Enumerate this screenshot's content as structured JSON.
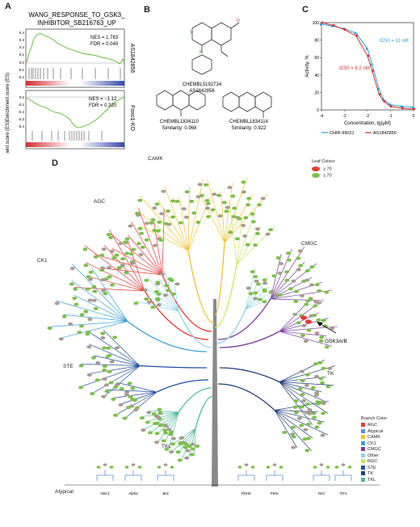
{
  "panels": {
    "a": "A",
    "b": "B",
    "c": "C",
    "d": "D"
  },
  "panelA": {
    "title1": "WANG_RESPONSE_TO_GSK3_",
    "title2": "INHIBITOR_SB216763_UP",
    "ylabel": "Enrichment score (ES)",
    "top": {
      "nes": "NES = 1.783",
      "fdr": "FDR = 0.049",
      "side": "AS1842856",
      "ticks": [
        "0.4",
        "0.3",
        "0.2",
        "0.1",
        "0.0",
        "-0.1",
        "-0.2"
      ]
    },
    "bottom": {
      "nes": "NES = −1.12",
      "fdr": "FDR = 0.320",
      "side": "Foxo1-KO",
      "ticks": [
        "0.0",
        "-0.1",
        "-0.2",
        "-0.3",
        "-0.4"
      ]
    }
  },
  "panelB": {
    "c1_id": "CHEMBL5192734",
    "c1_name": "AS1842856",
    "c2_id": "CHEMBL1834110",
    "c2_sim": "Similarity: 0.968",
    "c3_id": "CHEMBL1834114",
    "c3_sim": "Similarity: 0.922"
  },
  "panelC": {
    "ylabel": "Activity, %",
    "xlabel": "Concentration, lg(μM)",
    "ic50_blue": "IC50 = 11 nM",
    "ic50_red": "IC50 = 8.2 nM",
    "legend": [
      "CHIR-99021",
      "AS1842856"
    ],
    "colors": {
      "blue": "#2c9fd9",
      "red": "#d32f2f"
    },
    "yticks": [
      "100",
      "80",
      "60",
      "40",
      "20",
      "0"
    ],
    "xticks": [
      "-4",
      "-3",
      "-2",
      "-1",
      "0"
    ]
  },
  "chart_data": {
    "type": "scatter",
    "xlabel": "Concentration, lg(μM)",
    "ylabel": "Activity, %",
    "xlim": [
      -4,
      0
    ],
    "ylim": [
      0,
      100
    ],
    "series": [
      {
        "name": "CHIR-99021",
        "color": "#2c9fd9",
        "x": [
          -4,
          -3.5,
          -3,
          -2.5,
          -2,
          -1.8,
          -1.5,
          -1.3,
          -1,
          -0.5,
          0
        ],
        "y": [
          98,
          96,
          93,
          88,
          70,
          52,
          24,
          12,
          6,
          4,
          3
        ]
      },
      {
        "name": "AS1842856",
        "color": "#d32f2f",
        "x": [
          -4,
          -3.5,
          -3,
          -2.5,
          -2,
          -1.8,
          -1.5,
          -1.3,
          -1,
          -0.5,
          0
        ],
        "y": [
          100,
          97,
          92,
          85,
          62,
          45,
          18,
          10,
          4,
          2,
          1
        ]
      }
    ]
  },
  "panelD": {
    "groups": {
      "camk": "CAMK",
      "agc": "AGC",
      "cmgc": "CMGC",
      "ck1": "CK1",
      "ste": "STE",
      "tk": "TK",
      "tkl": "TKL",
      "atypical": "Atypical"
    },
    "arrow_label": "GSK3A/B",
    "leaf_legend": {
      "title": "Leaf Colour",
      "hi": "≥ 70",
      "lo": "≤ 70"
    },
    "branch_legend": {
      "title": "Branch Color",
      "items": [
        {
          "name": "AGC",
          "color": "#e53935"
        },
        {
          "name": "Atypical",
          "color": "#5c8fd6"
        },
        {
          "name": "CAMK",
          "color": "#f2c12e"
        },
        {
          "name": "CK1",
          "color": "#3aa0d8"
        },
        {
          "name": "CMGC",
          "color": "#7b3fa0"
        },
        {
          "name": "Other",
          "color": "#8fd3e8"
        },
        {
          "name": "RGC",
          "color": "#c8e65a"
        },
        {
          "name": "STE",
          "color": "#1e4fa0"
        },
        {
          "name": "TK",
          "color": "#1f3d7a"
        },
        {
          "name": "TKL",
          "color": "#4fb99a"
        }
      ]
    },
    "atypical_sub": [
      "ABC1",
      "Alpha",
      "Brd",
      "PDHK",
      "PIKK",
      "RIO",
      "TIF1"
    ]
  }
}
